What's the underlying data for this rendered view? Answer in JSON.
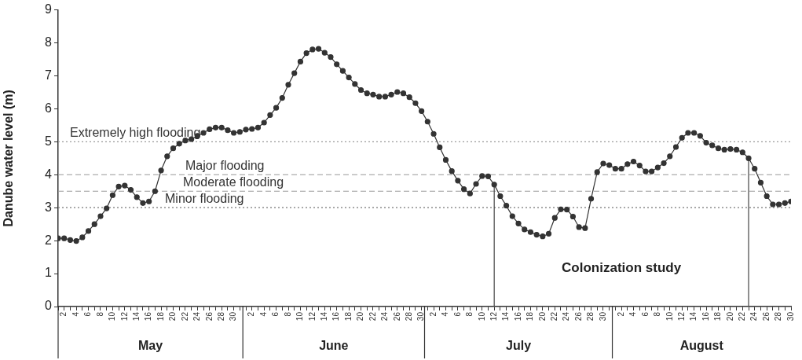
{
  "chart_data": {
    "type": "line",
    "ylabel": "Danube water level (m)",
    "x": [
      "--05-01",
      "--05-02",
      "--05-03",
      "--05-04",
      "--05-05",
      "--05-06",
      "--05-07",
      "--05-08",
      "--05-09",
      "--05-10",
      "--05-11",
      "--05-12",
      "--05-13",
      "--05-14",
      "--05-15",
      "--05-16",
      "--05-17",
      "--05-18",
      "--05-19",
      "--05-20",
      "--05-21",
      "--05-22",
      "--05-23",
      "--05-24",
      "--05-25",
      "--05-26",
      "--05-27",
      "--05-28",
      "--05-29",
      "--05-30",
      "--05-31",
      "--06-01",
      "--06-02",
      "--06-03",
      "--06-04",
      "--06-05",
      "--06-06",
      "--06-07",
      "--06-08",
      "--06-09",
      "--06-10",
      "--06-11",
      "--06-12",
      "--06-13",
      "--06-14",
      "--06-15",
      "--06-16",
      "--06-17",
      "--06-18",
      "--06-19",
      "--06-20",
      "--06-21",
      "--06-22",
      "--06-23",
      "--06-24",
      "--06-25",
      "--06-26",
      "--06-27",
      "--06-28",
      "--06-29",
      "--06-30",
      "--07-01",
      "--07-02",
      "--07-03",
      "--07-04",
      "--07-05",
      "--07-06",
      "--07-07",
      "--07-08",
      "--07-09",
      "--07-10",
      "--07-11",
      "--07-12",
      "--07-13",
      "--07-14",
      "--07-15",
      "--07-16",
      "--07-17",
      "--07-18",
      "--07-19",
      "--07-20",
      "--07-21",
      "--07-22",
      "--07-23",
      "--07-24",
      "--07-25",
      "--07-26",
      "--07-27",
      "--07-28",
      "--07-29",
      "--07-30",
      "--07-31",
      "--08-01",
      "--08-02",
      "--08-03",
      "--08-04",
      "--08-05",
      "--08-06",
      "--08-07",
      "--08-08",
      "--08-09",
      "--08-10",
      "--08-11",
      "--08-12",
      "--08-13",
      "--08-14",
      "--08-15",
      "--08-16",
      "--08-17",
      "--08-18",
      "--08-19",
      "--08-20",
      "--08-21",
      "--08-22",
      "--08-23",
      "--08-24",
      "--08-25",
      "--08-26",
      "--08-27",
      "--08-28",
      "--08-29",
      "--08-30"
    ],
    "series": [
      {
        "color": "#333333",
        "values": [
          2.07,
          2.07,
          2.02,
          1.99,
          2.1,
          2.29,
          2.5,
          2.74,
          2.98,
          3.38,
          3.64,
          3.67,
          3.54,
          3.32,
          3.14,
          3.19,
          3.5,
          4.13,
          4.56,
          4.8,
          4.94,
          5.04,
          5.08,
          5.18,
          5.27,
          5.38,
          5.43,
          5.43,
          5.35,
          5.27,
          5.3,
          5.37,
          5.39,
          5.43,
          5.58,
          5.81,
          6.03,
          6.33,
          6.73,
          7.08,
          7.43,
          7.69,
          7.8,
          7.82,
          7.7,
          7.57,
          7.35,
          7.15,
          6.95,
          6.75,
          6.57,
          6.47,
          6.43,
          6.37,
          6.37,
          6.43,
          6.51,
          6.47,
          6.35,
          6.17,
          5.93,
          5.61,
          5.24,
          4.83,
          4.45,
          4.11,
          3.82,
          3.56,
          3.43,
          3.72,
          3.96,
          3.95,
          3.7,
          3.35,
          3.06,
          2.74,
          2.52,
          2.34,
          2.26,
          2.18,
          2.13,
          2.21,
          2.69,
          2.95,
          2.94,
          2.73,
          2.41,
          2.38,
          3.27,
          4.08,
          4.34,
          4.29,
          4.18,
          4.18,
          4.32,
          4.4,
          4.28,
          4.1,
          4.1,
          4.22,
          4.35,
          4.56,
          4.84,
          5.12,
          5.27,
          5.27,
          5.18,
          4.97,
          4.89,
          4.8,
          4.76,
          4.78,
          4.76,
          4.68,
          4.5,
          4.18,
          3.76,
          3.35,
          3.1,
          3.1,
          3.14,
          3.19
        ]
      }
    ],
    "xlim": [
      "--05-01",
      "--08-30"
    ],
    "xticks": [
      {
        "value": "--05-01",
        "label": null
      },
      {
        "value": "--05-02",
        "label": "2"
      },
      {
        "value": "--05-03",
        "label": null
      },
      {
        "value": "--05-04",
        "label": "4"
      },
      {
        "value": "--05-05",
        "label": null
      },
      {
        "value": "--05-06",
        "label": "6"
      },
      {
        "value": "--05-07",
        "label": null
      },
      {
        "value": "--05-08",
        "label": "8"
      },
      {
        "value": "--05-09",
        "label": null
      },
      {
        "value": "--05-10",
        "label": "10"
      },
      {
        "value": "--05-11",
        "label": null
      },
      {
        "value": "--05-12",
        "label": "12"
      },
      {
        "value": "--05-13",
        "label": null
      },
      {
        "value": "--05-14",
        "label": "14"
      },
      {
        "value": "--05-15",
        "label": null
      },
      {
        "value": "--05-16",
        "label": "16"
      },
      {
        "value": "--05-17",
        "label": null
      },
      {
        "value": "--05-18",
        "label": "18"
      },
      {
        "value": "--05-19",
        "label": null
      },
      {
        "value": "--05-20",
        "label": "20"
      },
      {
        "value": "--05-21",
        "label": null
      },
      {
        "value": "--05-22",
        "label": "22"
      },
      {
        "value": "--05-23",
        "label": null
      },
      {
        "value": "--05-24",
        "label": "24"
      },
      {
        "value": "--05-25",
        "label": null
      },
      {
        "value": "--05-26",
        "label": "26"
      },
      {
        "value": "--05-27",
        "label": null
      },
      {
        "value": "--05-28",
        "label": "28"
      },
      {
        "value": "--05-29",
        "label": null
      },
      {
        "value": "--05-30",
        "label": "30"
      },
      {
        "value": "--05-31",
        "label": null
      },
      {
        "value": "--06-01",
        "label": null
      },
      {
        "value": "--06-02",
        "label": "2"
      },
      {
        "value": "--06-03",
        "label": null
      },
      {
        "value": "--06-04",
        "label": "4"
      },
      {
        "value": "--06-05",
        "label": null
      },
      {
        "value": "--06-06",
        "label": "6"
      },
      {
        "value": "--06-07",
        "label": null
      },
      {
        "value": "--06-08",
        "label": "8"
      },
      {
        "value": "--06-09",
        "label": null
      },
      {
        "value": "--06-10",
        "label": "10"
      },
      {
        "value": "--06-11",
        "label": null
      },
      {
        "value": "--06-12",
        "label": "12"
      },
      {
        "value": "--06-13",
        "label": null
      },
      {
        "value": "--06-14",
        "label": "14"
      },
      {
        "value": "--06-15",
        "label": null
      },
      {
        "value": "--06-16",
        "label": "16"
      },
      {
        "value": "--06-17",
        "label": null
      },
      {
        "value": "--06-18",
        "label": "18"
      },
      {
        "value": "--06-19",
        "label": null
      },
      {
        "value": "--06-20",
        "label": "20"
      },
      {
        "value": "--06-21",
        "label": null
      },
      {
        "value": "--06-22",
        "label": "22"
      },
      {
        "value": "--06-23",
        "label": null
      },
      {
        "value": "--06-24",
        "label": "24"
      },
      {
        "value": "--06-25",
        "label": null
      },
      {
        "value": "--06-26",
        "label": "26"
      },
      {
        "value": "--06-27",
        "label": null
      },
      {
        "value": "--06-28",
        "label": "28"
      },
      {
        "value": "--06-29",
        "label": null
      },
      {
        "value": "--06-30",
        "label": "30"
      },
      {
        "value": "--07-01",
        "label": null
      },
      {
        "value": "--07-02",
        "label": "2"
      },
      {
        "value": "--07-03",
        "label": null
      },
      {
        "value": "--07-04",
        "label": "4"
      },
      {
        "value": "--07-05",
        "label": null
      },
      {
        "value": "--07-06",
        "label": "6"
      },
      {
        "value": "--07-07",
        "label": null
      },
      {
        "value": "--07-08",
        "label": "8"
      },
      {
        "value": "--07-09",
        "label": null
      },
      {
        "value": "--07-10",
        "label": "10"
      },
      {
        "value": "--07-11",
        "label": null
      },
      {
        "value": "--07-12",
        "label": "12"
      },
      {
        "value": "--07-13",
        "label": null
      },
      {
        "value": "--07-14",
        "label": "14"
      },
      {
        "value": "--07-15",
        "label": null
      },
      {
        "value": "--07-16",
        "label": "16"
      },
      {
        "value": "--07-17",
        "label": null
      },
      {
        "value": "--07-18",
        "label": "18"
      },
      {
        "value": "--07-19",
        "label": null
      },
      {
        "value": "--07-20",
        "label": "20"
      },
      {
        "value": "--07-21",
        "label": null
      },
      {
        "value": "--07-22",
        "label": "22"
      },
      {
        "value": "--07-23",
        "label": null
      },
      {
        "value": "--07-24",
        "label": "24"
      },
      {
        "value": "--07-25",
        "label": null
      },
      {
        "value": "--07-26",
        "label": "26"
      },
      {
        "value": "--07-27",
        "label": null
      },
      {
        "value": "--07-28",
        "label": "28"
      },
      {
        "value": "--07-29",
        "label": null
      },
      {
        "value": "--07-30",
        "label": "30"
      },
      {
        "value": "--07-31",
        "label": null
      },
      {
        "value": "--08-01",
        "label": null
      },
      {
        "value": "--08-02",
        "label": "2"
      },
      {
        "value": "--08-03",
        "label": null
      },
      {
        "value": "--08-04",
        "label": "4"
      },
      {
        "value": "--08-05",
        "label": null
      },
      {
        "value": "--08-06",
        "label": "6"
      },
      {
        "value": "--08-07",
        "label": null
      },
      {
        "value": "--08-08",
        "label": "8"
      },
      {
        "value": "--08-09",
        "label": null
      },
      {
        "value": "--08-10",
        "label": "10"
      },
      {
        "value": "--08-11",
        "label": null
      },
      {
        "value": "--08-12",
        "label": "12"
      },
      {
        "value": "--08-13",
        "label": null
      },
      {
        "value": "--08-14",
        "label": "14"
      },
      {
        "value": "--08-15",
        "label": null
      },
      {
        "value": "--08-16",
        "label": "16"
      },
      {
        "value": "--08-17",
        "label": null
      },
      {
        "value": "--08-18",
        "label": "18"
      },
      {
        "value": "--08-19",
        "label": null
      },
      {
        "value": "--08-20",
        "label": "20"
      },
      {
        "value": "--08-21",
        "label": null
      },
      {
        "value": "--08-22",
        "label": "22"
      },
      {
        "value": "--08-23",
        "label": null
      },
      {
        "value": "--08-24",
        "label": "24"
      },
      {
        "value": "--08-25",
        "label": null
      },
      {
        "value": "--08-26",
        "label": "26"
      },
      {
        "value": "--08-27",
        "label": null
      },
      {
        "value": "--08-28",
        "label": "28"
      },
      {
        "value": "--08-29",
        "label": null
      },
      {
        "value": "--08-30",
        "label": "30"
      }
    ],
    "ylim": [
      0,
      9
    ],
    "yticks": [
      0,
      1,
      2,
      3,
      4,
      5,
      6,
      7,
      8,
      9
    ],
    "ref_lines": [
      {
        "axis": "y",
        "value": 5,
        "label": "Extremely high flooding",
        "color": "#999999",
        "line_style": "dotted"
      },
      {
        "axis": "y",
        "value": 4,
        "label": "Major flooding",
        "color": "#999999",
        "line_style": "dashed"
      },
      {
        "axis": "y",
        "value": 3.5,
        "label": "Moderate flooding",
        "color": "#999999",
        "line_style": "dashed"
      },
      {
        "axis": "y",
        "value": 3,
        "label": "Minor flooding",
        "color": "#777777",
        "line_style": "dotted"
      },
      {
        "axis": "x",
        "value": "--07-12",
        "color": "#444444",
        "line_style": "solid"
      },
      {
        "axis": "x",
        "value": "--08-23",
        "color": "#444444",
        "line_style": "solid"
      }
    ],
    "annotations": [
      "May",
      "June",
      "July",
      "August",
      "Colonization study"
    ],
    "marker": "circle",
    "line_style": "solid",
    "grid": false,
    "legend": false
  }
}
